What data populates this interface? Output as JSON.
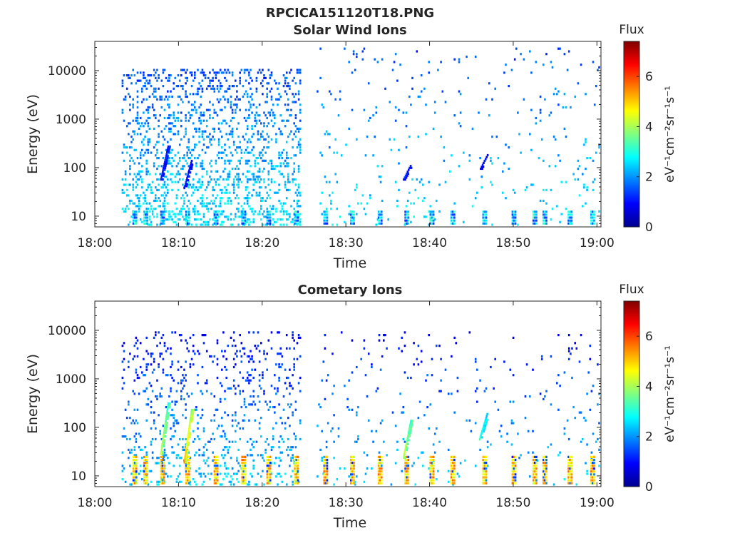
{
  "figure": {
    "title": "RPCICA151120T18.PNG"
  },
  "chart_data": [
    {
      "type": "heatmap",
      "title": "Solar Wind Ions",
      "xlabel": "Time",
      "ylabel": "Energy (eV)",
      "x_range": [
        "18:00",
        "19:00"
      ],
      "x_ticks": [
        "18:00",
        "18:10",
        "18:20",
        "18:30",
        "18:40",
        "18:50",
        "19:00"
      ],
      "y_scale": "log",
      "y_range": [
        6,
        40000
      ],
      "y_ticks": [
        "10",
        "100",
        "1000",
        "10000"
      ],
      "colorbar": {
        "title": "Flux",
        "label": "eV⁻¹cm⁻²sr⁻¹s⁻¹",
        "range": [
          0,
          7.4
        ],
        "ticks": [
          "0",
          "2",
          "4",
          "6"
        ],
        "colormap": "jet"
      },
      "activity": [
        {
          "start_min": 3.2,
          "end_min": 24.5,
          "density": "high",
          "energy_eV": [
            7,
            12000
          ],
          "flux": [
            1,
            3
          ]
        },
        {
          "start_min": 26.5,
          "end_min": 60.5,
          "density": "sparse",
          "energy_eV": [
            7,
            30000
          ],
          "flux": [
            1,
            3
          ]
        }
      ],
      "features": [
        {
          "time_min": 8.2,
          "energy_eV": [
            60,
            300
          ],
          "flux": 1
        },
        {
          "time_min": 11.0,
          "energy_eV": [
            40,
            150
          ],
          "flux": 1
        },
        {
          "time_min": 37.2,
          "energy_eV": [
            60,
            120
          ],
          "flux": 1
        },
        {
          "time_min": 46.4,
          "energy_eV": [
            100,
            200
          ],
          "flux": 0.8
        }
      ],
      "low_energy_bursts_min": [
        4.5,
        5.8,
        7.8,
        10.8,
        14.2,
        17.5,
        20.5,
        23.8,
        27.3,
        30.5,
        33.8,
        37.0,
        40.0,
        42.5,
        46.3,
        49.8,
        52.3,
        53.5,
        56.5,
        59.2
      ]
    },
    {
      "type": "heatmap",
      "title": "Cometary Ions",
      "xlabel": "Time",
      "ylabel": "Energy (eV)",
      "x_range": [
        "18:00",
        "19:00"
      ],
      "x_ticks": [
        "18:00",
        "18:10",
        "18:20",
        "18:30",
        "18:40",
        "18:50",
        "19:00"
      ],
      "y_scale": "log",
      "y_range": [
        6,
        40000
      ],
      "y_ticks": [
        "10",
        "100",
        "1000",
        "10000"
      ],
      "colorbar": {
        "title": "Flux",
        "label": "eV⁻¹cm⁻²sr⁻¹s⁻¹",
        "range": [
          0,
          7.4
        ],
        "ticks": [
          "0",
          "2",
          "4",
          "6"
        ],
        "colormap": "jet"
      },
      "activity": [
        {
          "start_min": 3.2,
          "end_min": 24.5,
          "density": "medium",
          "energy_eV": [
            7,
            10000
          ],
          "flux": [
            0.5,
            3
          ]
        },
        {
          "start_min": 26.5,
          "end_min": 60.5,
          "density": "sparse",
          "energy_eV": [
            7,
            10000
          ],
          "flux": [
            0.5,
            3
          ]
        }
      ],
      "features": [
        {
          "time_min": 8.2,
          "energy_eV": [
            30,
            350
          ],
          "flux": 4
        },
        {
          "time_min": 11.0,
          "energy_eV": [
            20,
            250
          ],
          "flux": 5
        },
        {
          "time_min": 37.2,
          "energy_eV": [
            25,
            150
          ],
          "flux": 4
        },
        {
          "time_min": 46.3,
          "energy_eV": [
            60,
            200
          ],
          "flux": 3
        }
      ],
      "low_energy_bursts_min": [
        4.5,
        5.8,
        7.8,
        10.8,
        14.2,
        17.5,
        20.5,
        23.8,
        27.3,
        30.5,
        33.8,
        37.0,
        40.0,
        42.5,
        46.3,
        49.8,
        52.3,
        53.5,
        56.5,
        59.2
      ]
    }
  ]
}
